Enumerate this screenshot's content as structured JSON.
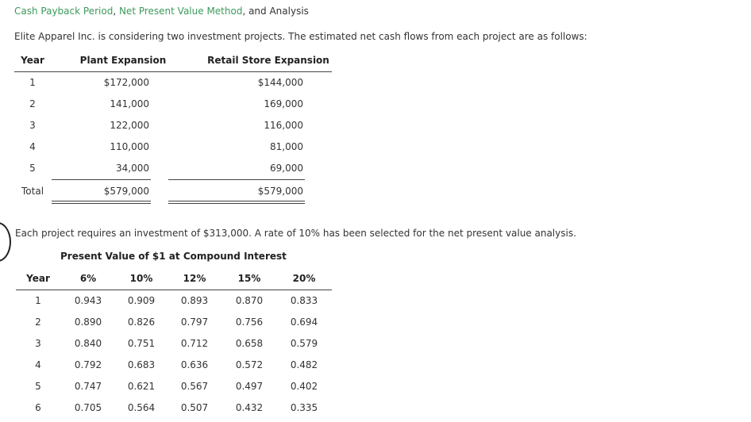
{
  "header": {
    "title_part1": "Cash Payback Period",
    "sep1": ", ",
    "title_part2": "Net Present Value Method",
    "sep2": ", and Analysis"
  },
  "intro": "Elite Apparel Inc. is considering two investment projects. The estimated net cash flows from each project are as follows:",
  "cashflows": {
    "col_year": "Year",
    "col_plant": "Plant Expansion",
    "col_retail": "Retail Store Expansion",
    "rows": [
      {
        "year": "1",
        "plant": "$172,000",
        "retail": "$144,000"
      },
      {
        "year": "2",
        "plant": "141,000",
        "retail": "169,000"
      },
      {
        "year": "3",
        "plant": "122,000",
        "retail": "116,000"
      },
      {
        "year": "4",
        "plant": "110,000",
        "retail": "81,000"
      },
      {
        "year": "5",
        "plant": "34,000",
        "retail": "69,000"
      }
    ],
    "total_label": "Total",
    "total_plant": "$579,000",
    "total_retail": "$579,000"
  },
  "investment_text": "Each project requires an investment of $313,000. A rate of 10% has been selected for the net present value analysis.",
  "pv_table": {
    "title": "Present Value of $1 at Compound Interest",
    "headers": [
      "Year",
      "6%",
      "10%",
      "12%",
      "15%",
      "20%"
    ],
    "rows": [
      [
        "1",
        "0.943",
        "0.909",
        "0.893",
        "0.870",
        "0.833"
      ],
      [
        "2",
        "0.890",
        "0.826",
        "0.797",
        "0.756",
        "0.694"
      ],
      [
        "3",
        "0.840",
        "0.751",
        "0.712",
        "0.658",
        "0.579"
      ],
      [
        "4",
        "0.792",
        "0.683",
        "0.636",
        "0.572",
        "0.482"
      ],
      [
        "5",
        "0.747",
        "0.621",
        "0.567",
        "0.497",
        "0.402"
      ],
      [
        "6",
        "0.705",
        "0.564",
        "0.507",
        "0.432",
        "0.335"
      ]
    ]
  }
}
